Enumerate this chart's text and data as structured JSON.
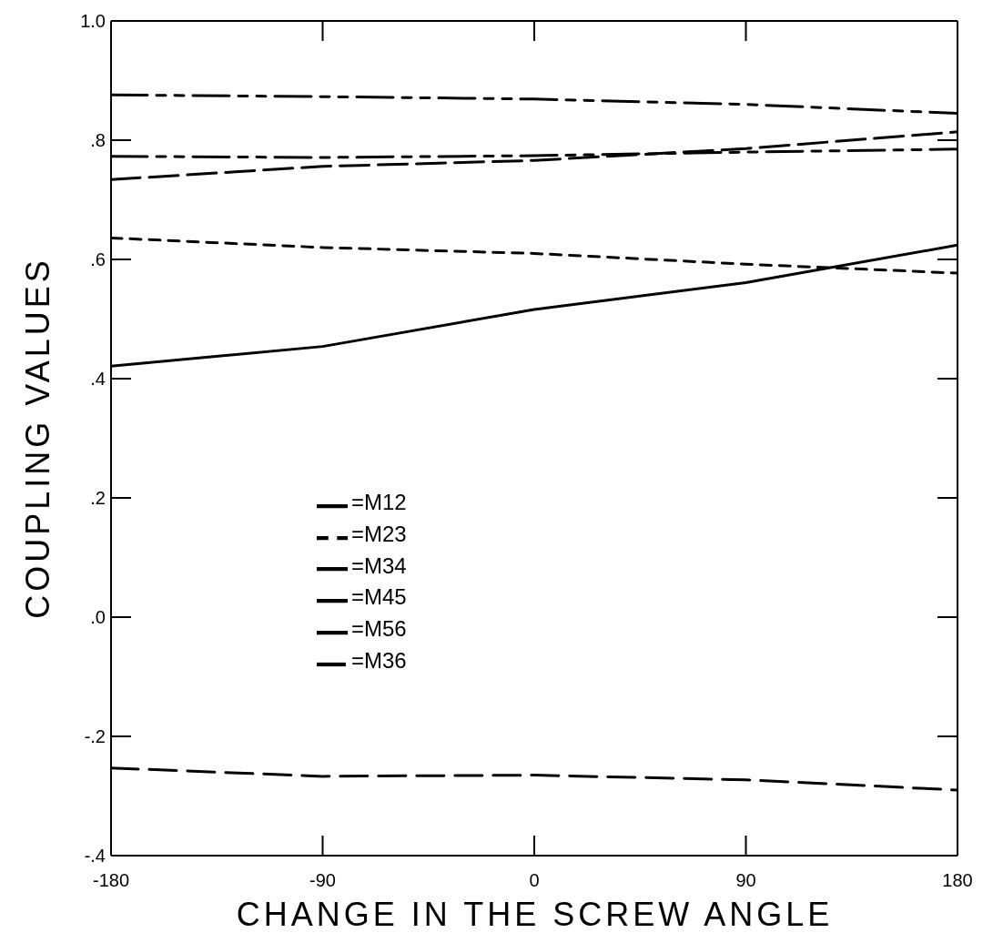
{
  "chart_data": {
    "type": "line",
    "xlabel": "CHANGE IN THE SCREW ANGLE",
    "ylabel": "COUPLING VALUES",
    "x": [
      -180,
      -90,
      0,
      90,
      180
    ],
    "xlim": [
      -180,
      180
    ],
    "xticks": [
      -180,
      -90,
      0,
      90,
      180
    ],
    "ylim": [
      -0.4,
      1.0
    ],
    "yticks": [
      {
        "value": -0.4,
        "label": "-.4"
      },
      {
        "value": -0.2,
        "label": "-.2"
      },
      {
        "value": 0,
        "label": ".0"
      },
      {
        "value": 0.2,
        "label": ".2"
      },
      {
        "value": 0.4,
        "label": ".4"
      },
      {
        "value": 0.6,
        "label": ".6"
      },
      {
        "value": 0.8,
        "label": ".8"
      },
      {
        "value": 1.0,
        "label": "1.0"
      }
    ],
    "grid": false,
    "legend": "center",
    "marker": "none",
    "series": [
      {
        "name": "=M12",
        "color": "#000000",
        "line_style": "dashed",
        "values": [
          0.876,
          0.873,
          0.869,
          0.86,
          0.845
        ]
      },
      {
        "name": "=M23",
        "color": "#000000",
        "line_style": "dotted",
        "values": [
          0.636,
          0.62,
          0.61,
          0.592,
          0.577
        ]
      },
      {
        "name": "=M34",
        "color": "#000000",
        "line_style": "solid",
        "values": [
          0.421,
          0.454,
          0.516,
          0.561,
          0.624
        ]
      },
      {
        "name": "=M45",
        "color": "#000000",
        "line_style": "dashed",
        "values": [
          0.734,
          0.756,
          0.766,
          0.786,
          0.814
        ]
      },
      {
        "name": "=M56",
        "color": "#000000",
        "line_style": "dashed",
        "values": [
          0.773,
          0.771,
          0.774,
          0.78,
          0.785
        ]
      },
      {
        "name": "=M36",
        "color": "#000000",
        "line_style": "dashed",
        "values": [
          -0.253,
          -0.267,
          -0.265,
          -0.273,
          -0.29
        ]
      }
    ]
  }
}
